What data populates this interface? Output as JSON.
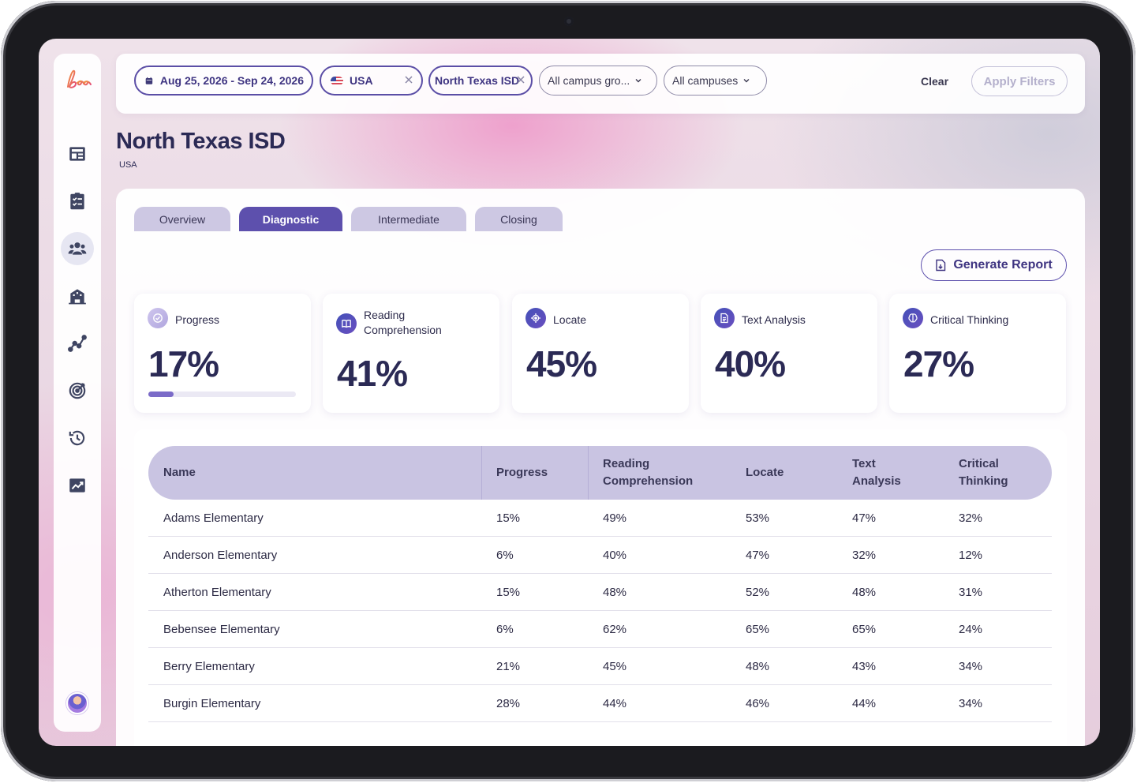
{
  "app": {
    "logo_text": "bee"
  },
  "sidebar": {
    "items": [
      {
        "icon": "dashboard-icon"
      },
      {
        "icon": "clipboard-checklist-icon"
      },
      {
        "icon": "users-group-icon",
        "active": true
      },
      {
        "icon": "school-building-icon"
      },
      {
        "icon": "line-chart-icon"
      },
      {
        "icon": "target-icon"
      },
      {
        "icon": "history-icon"
      },
      {
        "icon": "trend-report-icon"
      }
    ],
    "avatar": "user-avatar"
  },
  "filters": {
    "date_range": "Aug 25, 2026 - Sep 24, 2026",
    "country": "USA",
    "district": "North Texas ISD",
    "campus_group": "All campus gro...",
    "campuses": "All campuses",
    "clear_label": "Clear",
    "apply_label": "Apply Filters"
  },
  "page": {
    "title": "North Texas ISD",
    "subtitle": "USA"
  },
  "tabs": [
    {
      "label": "Overview",
      "active": false
    },
    {
      "label": "Diagnostic",
      "active": true
    },
    {
      "label": "Intermediate",
      "active": false
    },
    {
      "label": "Closing",
      "active": false
    }
  ],
  "generate_report_label": "Generate Report",
  "stats": [
    {
      "label": "Progress",
      "value": "17%",
      "progress_fraction": 0.17,
      "icon": "progress-check-icon"
    },
    {
      "label": "Reading Comprehension",
      "value": "41%",
      "icon": "book-icon"
    },
    {
      "label": "Locate",
      "value": "45%",
      "icon": "locate-icon"
    },
    {
      "label": "Text Analysis",
      "value": "40%",
      "icon": "document-icon"
    },
    {
      "label": "Critical Thinking",
      "value": "27%",
      "icon": "brain-icon"
    }
  ],
  "table": {
    "columns": [
      "Name",
      "Progress",
      "Reading Comprehension",
      "Locate",
      "Text Analysis",
      "Critical Thinking"
    ],
    "rows": [
      [
        "Adams Elementary",
        "15%",
        "49%",
        "53%",
        "47%",
        "32%"
      ],
      [
        "Anderson Elementary",
        "6%",
        "40%",
        "47%",
        "32%",
        "12%"
      ],
      [
        "Atherton Elementary",
        "15%",
        "48%",
        "52%",
        "48%",
        "31%"
      ],
      [
        "Bebensee Elementary",
        "6%",
        "62%",
        "65%",
        "65%",
        "24%"
      ],
      [
        "Berry Elementary",
        "21%",
        "45%",
        "48%",
        "43%",
        "34%"
      ],
      [
        "Burgin Elementary",
        "28%",
        "44%",
        "46%",
        "44%",
        "34%"
      ]
    ]
  },
  "colors": {
    "accent": "#5d50ad",
    "tab_inactive": "#cdc8e3",
    "table_header": "#c9c4e2",
    "title": "#2b2a55"
  }
}
